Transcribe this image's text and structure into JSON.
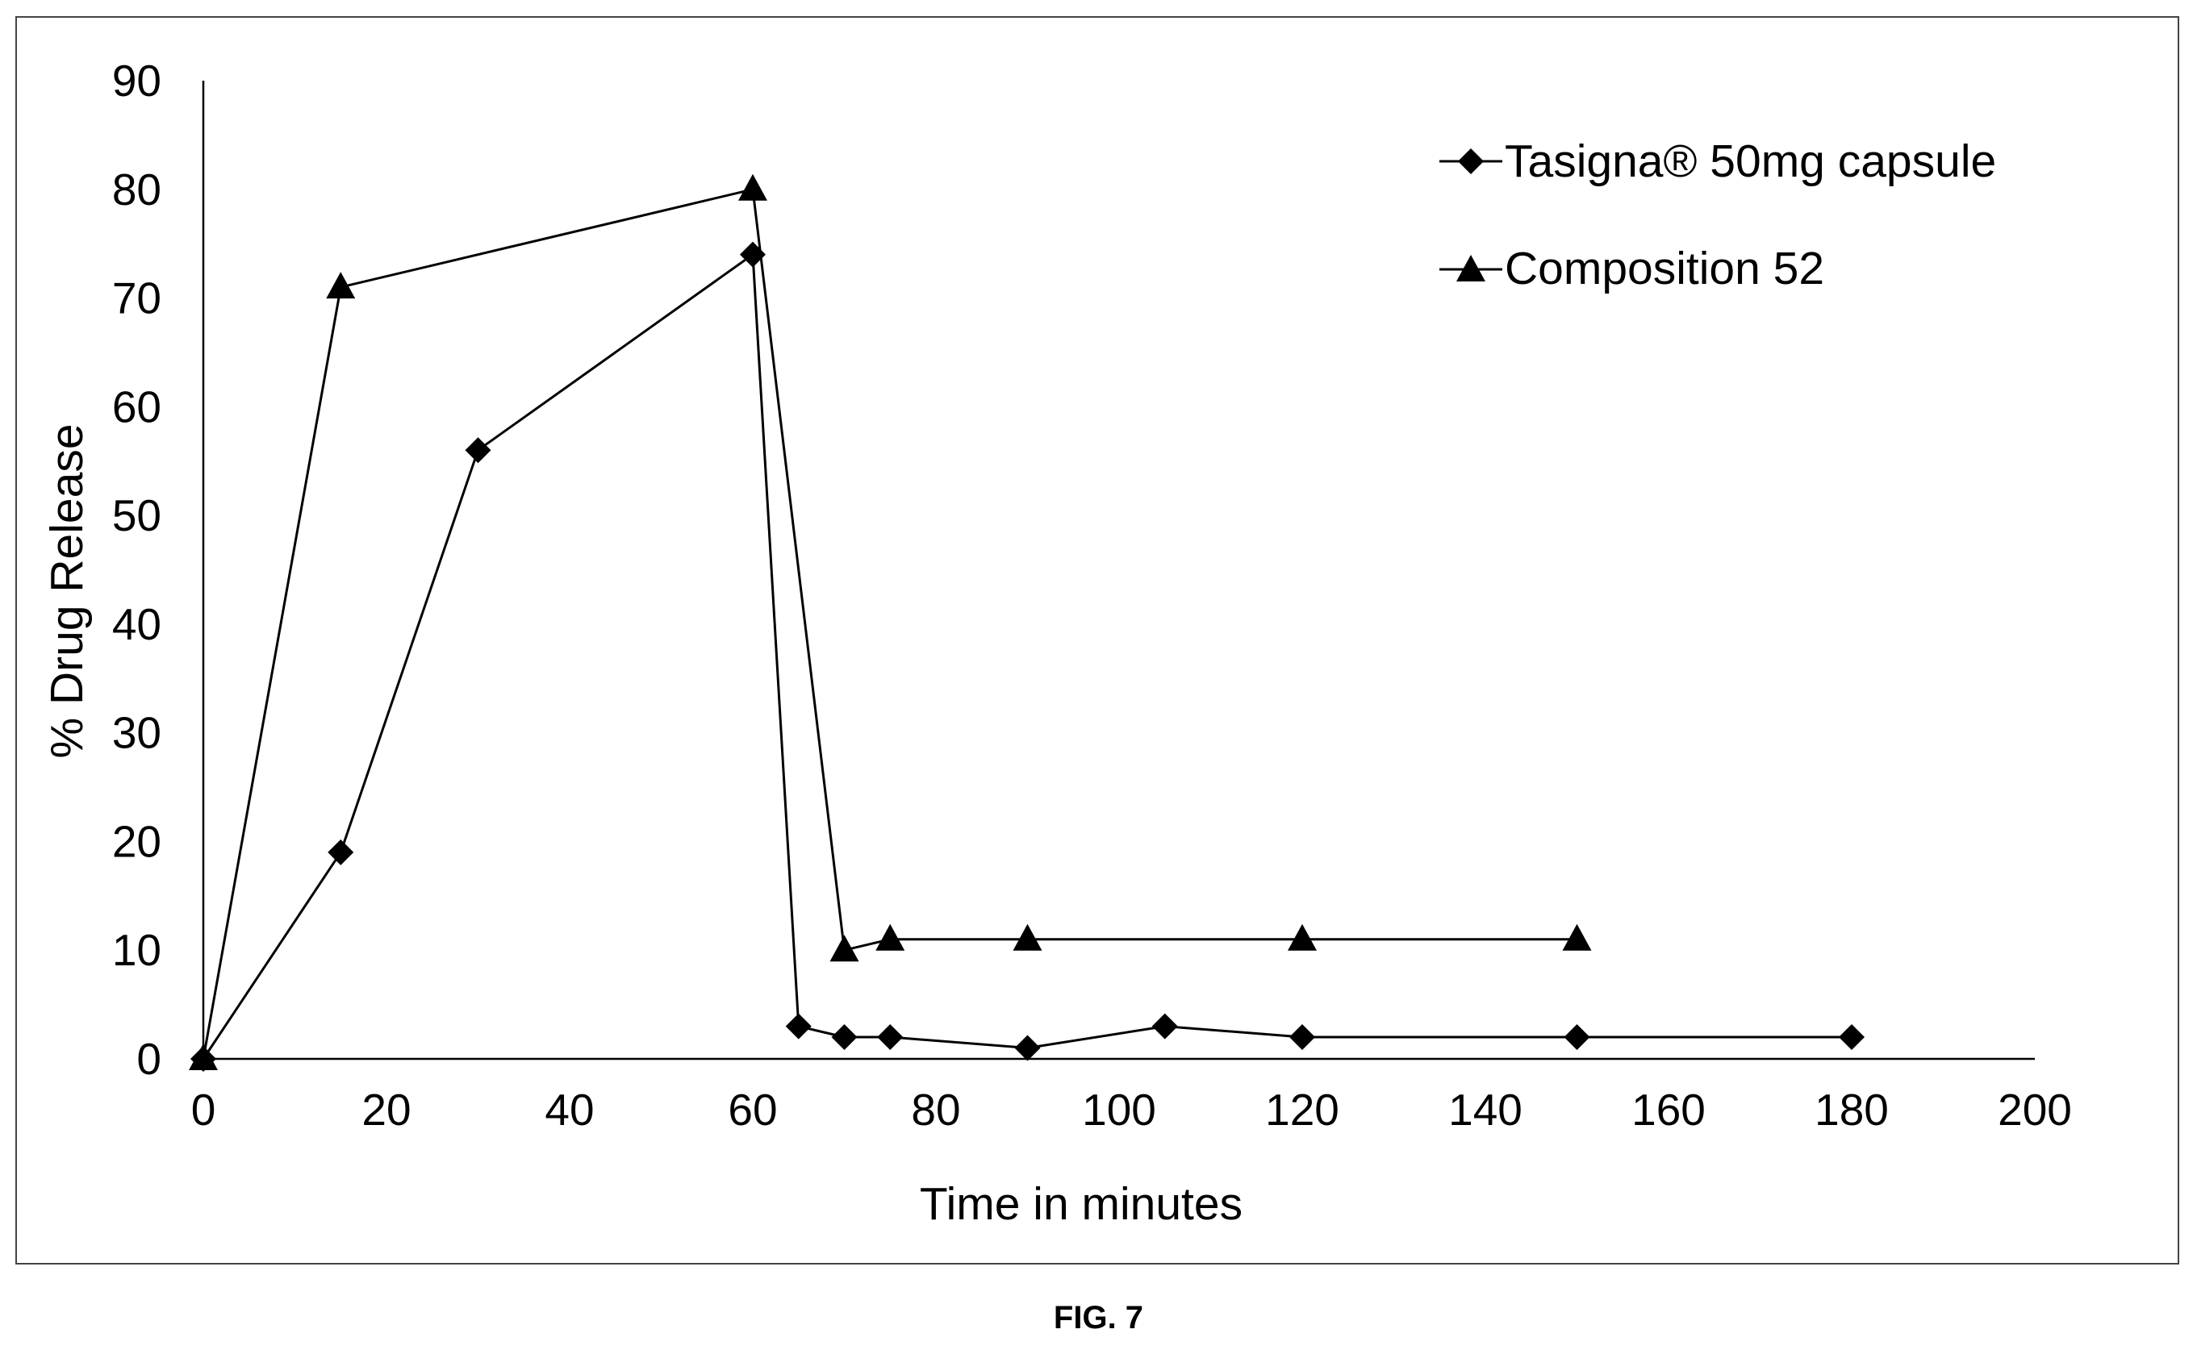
{
  "figure": {
    "caption": "FIG. 7"
  },
  "chart_data": {
    "type": "line",
    "xlabel": "Time in minutes",
    "ylabel": "% Drug Release",
    "xlim": [
      0,
      200
    ],
    "ylim": [
      0,
      90
    ],
    "x_ticks": [
      0,
      20,
      40,
      60,
      80,
      100,
      120,
      140,
      160,
      180,
      200
    ],
    "y_ticks": [
      0,
      10,
      20,
      30,
      40,
      50,
      60,
      70,
      80,
      90
    ],
    "grid": false,
    "legend_position": "top-right",
    "series": [
      {
        "name": "Tasigna® 50mg capsule",
        "marker": "diamond",
        "color": "#000000",
        "x": [
          0,
          15,
          30,
          60,
          65,
          70,
          75,
          90,
          105,
          120,
          150,
          180
        ],
        "y": [
          0,
          19,
          56,
          74,
          3,
          2,
          2,
          1,
          3,
          2,
          2,
          2
        ]
      },
      {
        "name": "Composition 52",
        "marker": "triangle",
        "color": "#000000",
        "x": [
          0,
          15,
          60,
          70,
          75,
          90,
          120,
          150
        ],
        "y": [
          0,
          71,
          80,
          10,
          11,
          11,
          11,
          11
        ]
      }
    ]
  }
}
